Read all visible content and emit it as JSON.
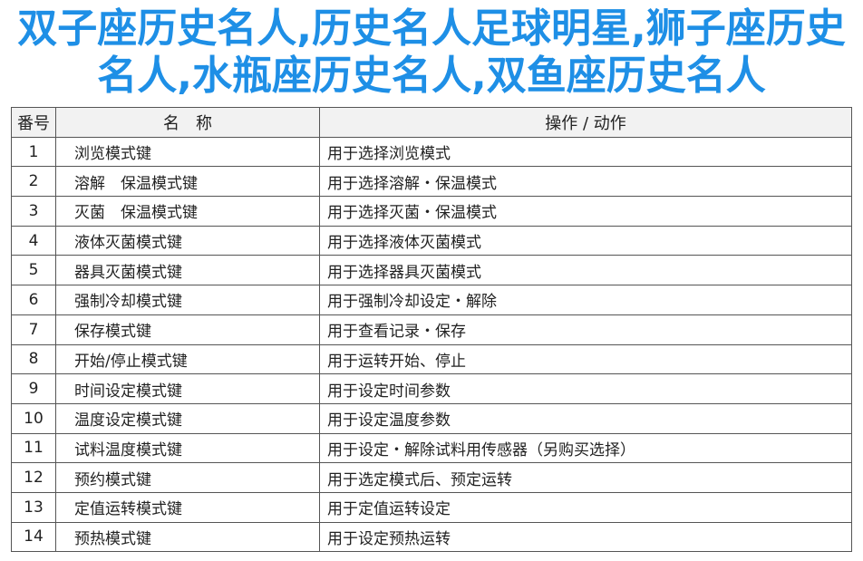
{
  "table": {
    "headers": [
      "番号",
      "名　称",
      "操作 / 动作"
    ],
    "rows": [
      [
        "1",
        "浏览模式键",
        "用于选择浏览模式"
      ],
      [
        "2",
        "溶解　保温模式键",
        "用于选择溶解・保温模式"
      ],
      [
        "3",
        "灭菌　保温模式键",
        "用于选择灭菌・保温模式"
      ],
      [
        "4",
        "液体灭菌模式键",
        "用于选择液体灭菌模式"
      ],
      [
        "5",
        "器具灭菌模式键",
        "用于选择器具灭菌模式"
      ],
      [
        "6",
        "强制冷却模式键",
        "用于强制冷却设定・解除"
      ],
      [
        "7",
        "保存模式键",
        "用于查看记录・保存"
      ],
      [
        "8",
        "开始/停止模式键",
        "用于运转开始、停止"
      ],
      [
        "9",
        "时间设定模式键",
        "用于设定时间参数"
      ],
      [
        "10",
        "温度设定模式键",
        "用于设定温度参数"
      ],
      [
        "11",
        "试料温度模式键",
        "用于设定・解除试料用传感器（另购买选择）"
      ],
      [
        "12",
        "预约模式键",
        "用于选定模式后、预定运转"
      ],
      [
        "13",
        "定值运转模式键",
        "用于定值运转设定"
      ],
      [
        "14",
        "预热模式键",
        "用于设定预热运转"
      ]
    ]
  },
  "overlay_title": "双子座历史名人,历史名人足球明星,狮子座历史名人,水瓶座历史名人,双鱼座历史名人",
  "colors": {
    "overlay_text": "#1e8fe6",
    "header_bg": "#f2f2f2"
  }
}
